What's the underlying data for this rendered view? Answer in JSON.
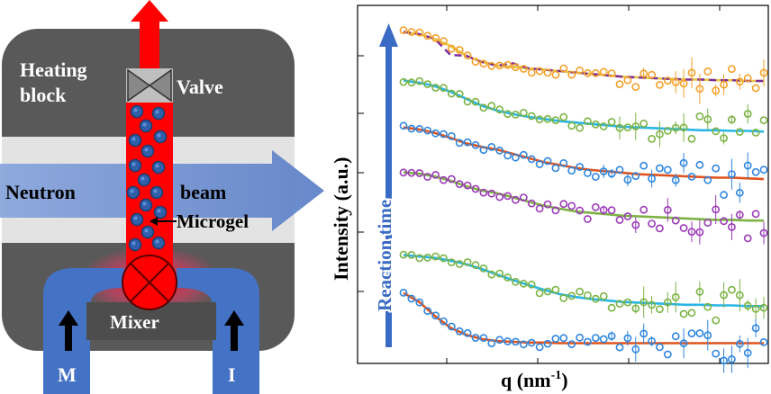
{
  "schematic": {
    "heating_block_label_line1": "Heating",
    "heating_block_label_line2": "block",
    "valve_label": "Valve",
    "neutron_label": "Neutron",
    "beam_label": "beam",
    "microgel_label": "Microgel",
    "mixer_label": "Mixer",
    "inlet_left_label": "M",
    "inlet_right_label": "I",
    "colors": {
      "block": "#595959",
      "beam": "#6f8fd0",
      "beam_band": "#e3e3e3",
      "tube": "#ff0000",
      "inlet": "#4472c4",
      "particle": "#2e5fa8"
    }
  },
  "chart": {
    "ylabel": "Intensity (a.u.)",
    "xlabel_prefix": "q (nm",
    "xlabel_exponent": "-1",
    "xlabel_suffix": ")",
    "arrow_label": "Reaction time",
    "arrow_color": "#3a6bc4"
  },
  "chart_data": {
    "type": "scatter",
    "title": "",
    "xlabel": "q (nm⁻¹)",
    "ylabel": "Intensity (a.u.)",
    "annotation": "Reaction time",
    "x_ticks_printed": false,
    "y_ticks_printed": false,
    "series": [
      {
        "marker": "#f5a02a",
        "fit": "#e7c642",
        "fit2": "#7c2a9a",
        "offset": 5,
        "values": [
          0.98,
          0.95,
          0.88,
          0.78,
          0.64,
          0.55,
          0.5,
          0.48,
          0.46,
          0.44,
          0.42,
          0.4,
          0.38,
          0.36,
          0.34,
          0.33,
          0.32,
          0.31,
          0.3,
          0.3,
          0.29,
          0.29,
          0.28,
          0.28
        ]
      },
      {
        "marker": "#7cb342",
        "fit": "#29b6e6",
        "offset": 4,
        "values": [
          0.98,
          0.95,
          0.9,
          0.82,
          0.72,
          0.62,
          0.55,
          0.5,
          0.46,
          0.43,
          0.4,
          0.38,
          0.36,
          0.34,
          0.32,
          0.31,
          0.3,
          0.29,
          0.28,
          0.27,
          0.27,
          0.26,
          0.26,
          0.25
        ]
      },
      {
        "marker": "#2e86de",
        "fit": "#e0531e",
        "offset": 3,
        "values": [
          0.98,
          0.95,
          0.9,
          0.83,
          0.75,
          0.7,
          0.66,
          0.6,
          0.54,
          0.48,
          0.44,
          0.4,
          0.37,
          0.35,
          0.33,
          0.31,
          0.3,
          0.29,
          0.28,
          0.27,
          0.26,
          0.26,
          0.25,
          0.24
        ]
      },
      {
        "marker": "#9b3ab8",
        "fit": "#7cb342",
        "offset": 2,
        "values": [
          0.98,
          0.96,
          0.92,
          0.86,
          0.78,
          0.72,
          0.68,
          0.62,
          0.56,
          0.5,
          0.46,
          0.42,
          0.4,
          0.38,
          0.36,
          0.35,
          0.34,
          0.33,
          0.32,
          0.31,
          0.3,
          0.3,
          0.29,
          0.29
        ]
      },
      {
        "marker": "#7cb342",
        "fit": "#29b6e6",
        "offset": 1,
        "values": [
          0.98,
          0.96,
          0.94,
          0.9,
          0.85,
          0.78,
          0.7,
          0.62,
          0.55,
          0.48,
          0.42,
          0.38,
          0.35,
          0.33,
          0.31,
          0.3,
          0.29,
          0.28,
          0.27,
          0.27,
          0.26,
          0.26,
          0.25,
          0.25
        ]
      },
      {
        "marker": "#2e86de",
        "fit": "#e0531e",
        "offset": 0,
        "values": [
          0.98,
          0.85,
          0.65,
          0.48,
          0.38,
          0.32,
          0.29,
          0.28,
          0.27,
          0.27,
          0.26,
          0.26,
          0.26,
          0.26,
          0.26,
          0.26,
          0.26,
          0.26,
          0.26,
          0.26,
          0.26,
          0.26,
          0.26,
          0.26
        ]
      }
    ]
  }
}
